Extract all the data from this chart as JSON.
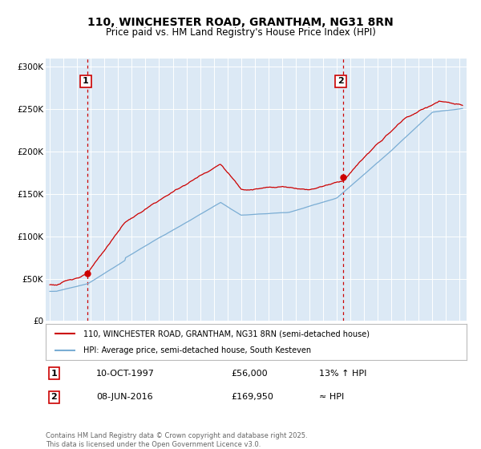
{
  "title": "110, WINCHESTER ROAD, GRANTHAM, NG31 8RN",
  "subtitle": "Price paid vs. HM Land Registry's House Price Index (HPI)",
  "red_label": "110, WINCHESTER ROAD, GRANTHAM, NG31 8RN (semi-detached house)",
  "blue_label": "HPI: Average price, semi-detached house, South Kesteven",
  "annotation1_date": "10-OCT-1997",
  "annotation1_price": "£56,000",
  "annotation1_hpi": "13% ↑ HPI",
  "annotation2_date": "08-JUN-2016",
  "annotation2_price": "£169,950",
  "annotation2_hpi": "≈ HPI",
  "footer": "Contains HM Land Registry data © Crown copyright and database right 2025.\nThis data is licensed under the Open Government Licence v3.0.",
  "plot_background": "#dce9f5",
  "ylim": [
    0,
    310000
  ],
  "yticks": [
    0,
    50000,
    100000,
    150000,
    200000,
    250000,
    300000
  ],
  "ytick_labels": [
    "£0",
    "£50K",
    "£100K",
    "£150K",
    "£200K",
    "£250K",
    "£300K"
  ],
  "red_color": "#cc0000",
  "blue_color": "#7aadd4",
  "marker1_year": 1997.78,
  "marker1_value": 56000,
  "marker2_year": 2016.44,
  "marker2_value": 169950
}
